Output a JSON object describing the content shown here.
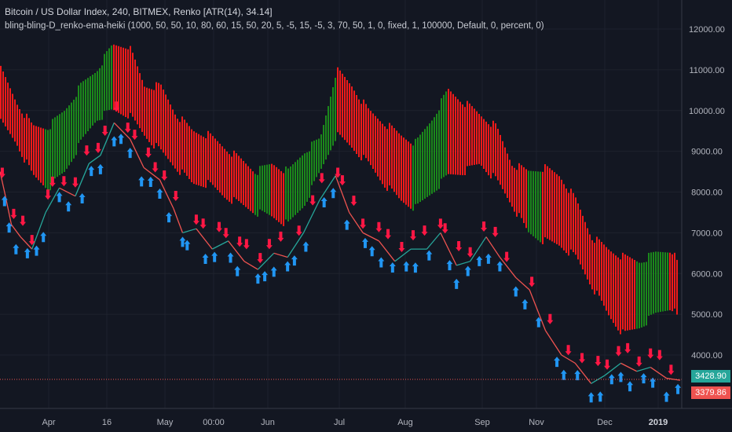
{
  "legend": {
    "title": "Bitcoin / US Dollar Index, 240, BITMEX, Renko [ATR(14), 34.14]",
    "indicator": "bling-bling-D_renko-ema-heiki (1000, 50, 50, 10, 80, 60, 15, 50, 20, 5, -5, 15, -5, 3, 70, 50, 1, 0, fixed, 1, 100000, Default, 0, percent, 0)"
  },
  "price_tags": [
    {
      "value": "3428.90",
      "color": "#26a69a"
    },
    {
      "value": "3379.86",
      "color": "#ef5350"
    }
  ],
  "chart_data": {
    "type": "line",
    "title": "",
    "xlabel": "",
    "ylabel": "",
    "ylim": [
      2700,
      12600
    ],
    "y_ticks": [
      4000,
      5000,
      6000,
      7000,
      8000,
      9000,
      10000,
      11000,
      12000
    ],
    "y_tick_labels": [
      "4000.00",
      "5000.00",
      "6000.00",
      "7000.00",
      "8000.00",
      "9000.00",
      "10000.00",
      "11000.00",
      "12000.00"
    ],
    "x_tick_labels": [
      "Apr",
      "16",
      "May",
      "00:00",
      "Jun",
      "Jul",
      "Aug",
      "Sep",
      "Nov",
      "Dec",
      "2019"
    ],
    "grid": true,
    "colors": {
      "up": "#26a69a",
      "down": "#ef5350",
      "cloud_up": "#1b8f1b",
      "cloud_down": "#ff1a1a",
      "arrow_up": "#2196f3",
      "arrow_down": "#ff1744"
    },
    "price_line": {
      "name": "",
      "x": [
        0,
        2,
        5,
        9,
        14,
        20,
        26,
        33,
        39,
        44,
        50,
        57,
        63,
        70,
        76,
        80,
        86,
        93,
        100,
        107,
        113,
        120,
        126,
        133,
        140,
        147,
        153,
        159,
        166,
        173,
        180,
        187,
        193,
        200,
        206,
        213,
        219,
        226,
        232,
        239,
        246,
        252,
        259,
        265,
        272,
        279,
        285,
        292,
        298
      ],
      "values": [
        8500,
        8000,
        7200,
        6900,
        6600,
        7500,
        8100,
        7900,
        8700,
        8900,
        9700,
        9300,
        8600,
        8300,
        7600,
        7000,
        7100,
        6600,
        6800,
        6300,
        6100,
        6500,
        6400,
        7000,
        7800,
        8400,
        7500,
        7000,
        6800,
        6300,
        6600,
        6600,
        7000,
        6200,
        6300,
        6900,
        6400,
        5900,
        5600,
        4600,
        4000,
        3800,
        3300,
        3500,
        3800,
        3600,
        3700,
        3430,
        3380
      ]
    },
    "cloud": {
      "x": [
        0,
        7,
        14,
        21,
        28,
        35,
        42,
        49,
        56,
        63,
        70,
        77,
        84,
        91,
        98,
        105,
        112,
        119,
        126,
        133,
        140,
        147,
        154,
        161,
        168,
        175,
        182,
        189,
        196,
        203,
        210,
        217,
        224,
        231,
        238,
        245,
        252,
        259,
        266,
        273,
        280,
        287,
        294,
        298
      ],
      "upper": [
        11000,
        10200,
        9600,
        9600,
        10000,
        10600,
        11000,
        11600,
        11600,
        10600,
        10600,
        9900,
        9500,
        9400,
        9100,
        8800,
        8500,
        8700,
        8500,
        9000,
        9300,
        11000,
        10600,
        10000,
        9700,
        9400,
        9200,
        9800,
        10500,
        10200,
        9900,
        9600,
        8700,
        8500,
        8600,
        8400,
        7800,
        6900,
        6600,
        6400,
        6300,
        6500,
        6600,
        6000
      ],
      "lower": [
        9700,
        9200,
        8400,
        8100,
        8500,
        9200,
        9800,
        10000,
        9900,
        9400,
        9000,
        8600,
        8200,
        8200,
        7900,
        7700,
        7500,
        7400,
        7200,
        7700,
        8500,
        9400,
        9100,
        8700,
        8200,
        7800,
        7600,
        8000,
        8400,
        8500,
        8700,
        8300,
        7700,
        7000,
        6800,
        6700,
        6400,
        5700,
        5000,
        4500,
        4700,
        5000,
        5200,
        4700
      ]
    },
    "up_arrow_x": [
      2,
      4,
      7,
      12,
      16,
      19,
      26,
      30,
      36,
      40,
      44,
      50,
      53,
      57,
      62,
      66,
      70,
      74,
      80,
      82,
      90,
      94,
      101,
      104,
      113,
      116,
      120,
      126,
      129,
      134,
      142,
      146,
      152,
      160,
      163,
      167,
      172,
      178,
      182,
      188,
      197,
      200,
      205,
      210,
      214,
      219,
      226,
      230,
      236,
      244,
      247,
      253,
      259,
      263,
      268,
      272,
      276,
      282,
      286,
      292,
      297
    ],
    "down_arrow_x": [
      1,
      6,
      10,
      14,
      21,
      23,
      28,
      33,
      38,
      43,
      46,
      51,
      56,
      59,
      65,
      68,
      72,
      77,
      86,
      89,
      96,
      99,
      105,
      108,
      114,
      118,
      123,
      131,
      137,
      141,
      148,
      150,
      155,
      159,
      166,
      170,
      176,
      181,
      186,
      193,
      195,
      201,
      206,
      212,
      217,
      222,
      233,
      241,
      249,
      255,
      262,
      266,
      271,
      275,
      280,
      285,
      289,
      294
    ]
  }
}
